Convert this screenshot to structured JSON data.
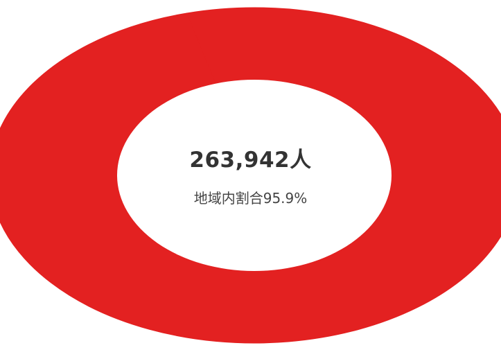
{
  "chart_data": {
    "type": "pie",
    "variant": "donut",
    "center_value": "263,942人",
    "center_subtitle": "地域内割合95.9%",
    "slices": [
      {
        "value": 95.9,
        "color": "#e32121"
      },
      {
        "value": 4.1,
        "color": "#e32121"
      }
    ],
    "legend": "none"
  },
  "colors": {
    "ring": "#e32121",
    "hole": "#ffffff",
    "value_text": "#333333",
    "subtitle_text": "#444444"
  }
}
